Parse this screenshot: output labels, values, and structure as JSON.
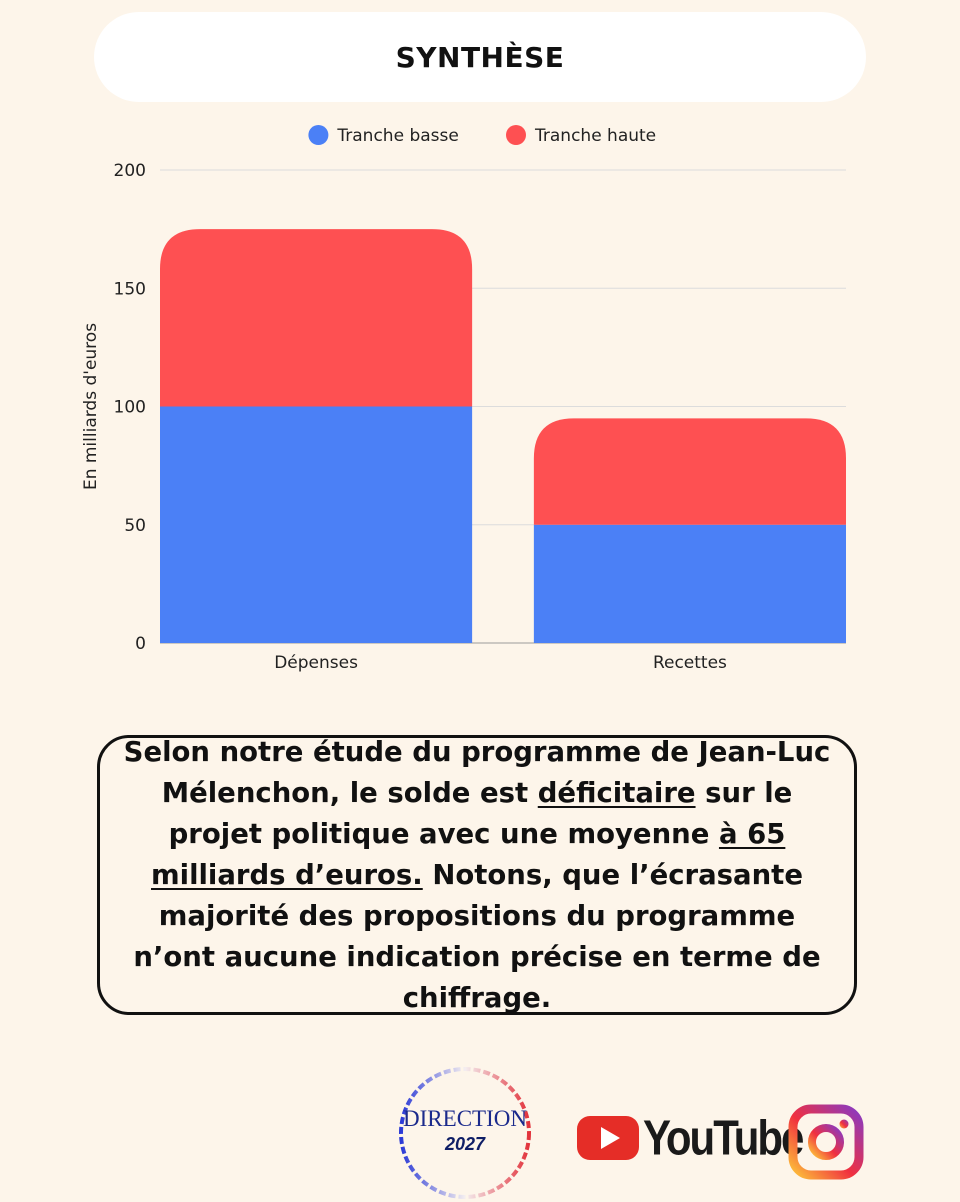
{
  "header": {
    "title": "SYNTHÈSE"
  },
  "chart_data": {
    "type": "bar",
    "stacked": true,
    "categories": [
      "Dépenses",
      "Recettes"
    ],
    "series": [
      {
        "name": "Tranche basse",
        "values": [
          100,
          50
        ],
        "color": "#4b80f6"
      },
      {
        "name": "Tranche haute",
        "values": [
          75,
          45
        ],
        "color": "#fe5052"
      }
    ],
    "ylabel": "En milliards d'euros",
    "ylim": [
      0,
      200
    ],
    "yticks": [
      0,
      50,
      100,
      150,
      200
    ],
    "legend": "top",
    "grid": true
  },
  "summary": {
    "part1": "Selon notre étude du programme de Jean-Luc Mélenchon, le solde est ",
    "emph1": "déficitaire",
    "part2": " sur le projet politique avec une moyenne ",
    "emph2": "à 65 milliards d’euros.",
    "part3": " Notons, que l’écrasante majorité des propositions du programme n’ont aucune indication précise en terme de chiffrage."
  },
  "footer": {
    "direction_logo_text": "DIRECTION",
    "direction_logo_year": "2027",
    "youtube_label": "YouTube",
    "youtube_icon": "youtube-play-icon",
    "instagram_icon": "instagram-icon"
  }
}
